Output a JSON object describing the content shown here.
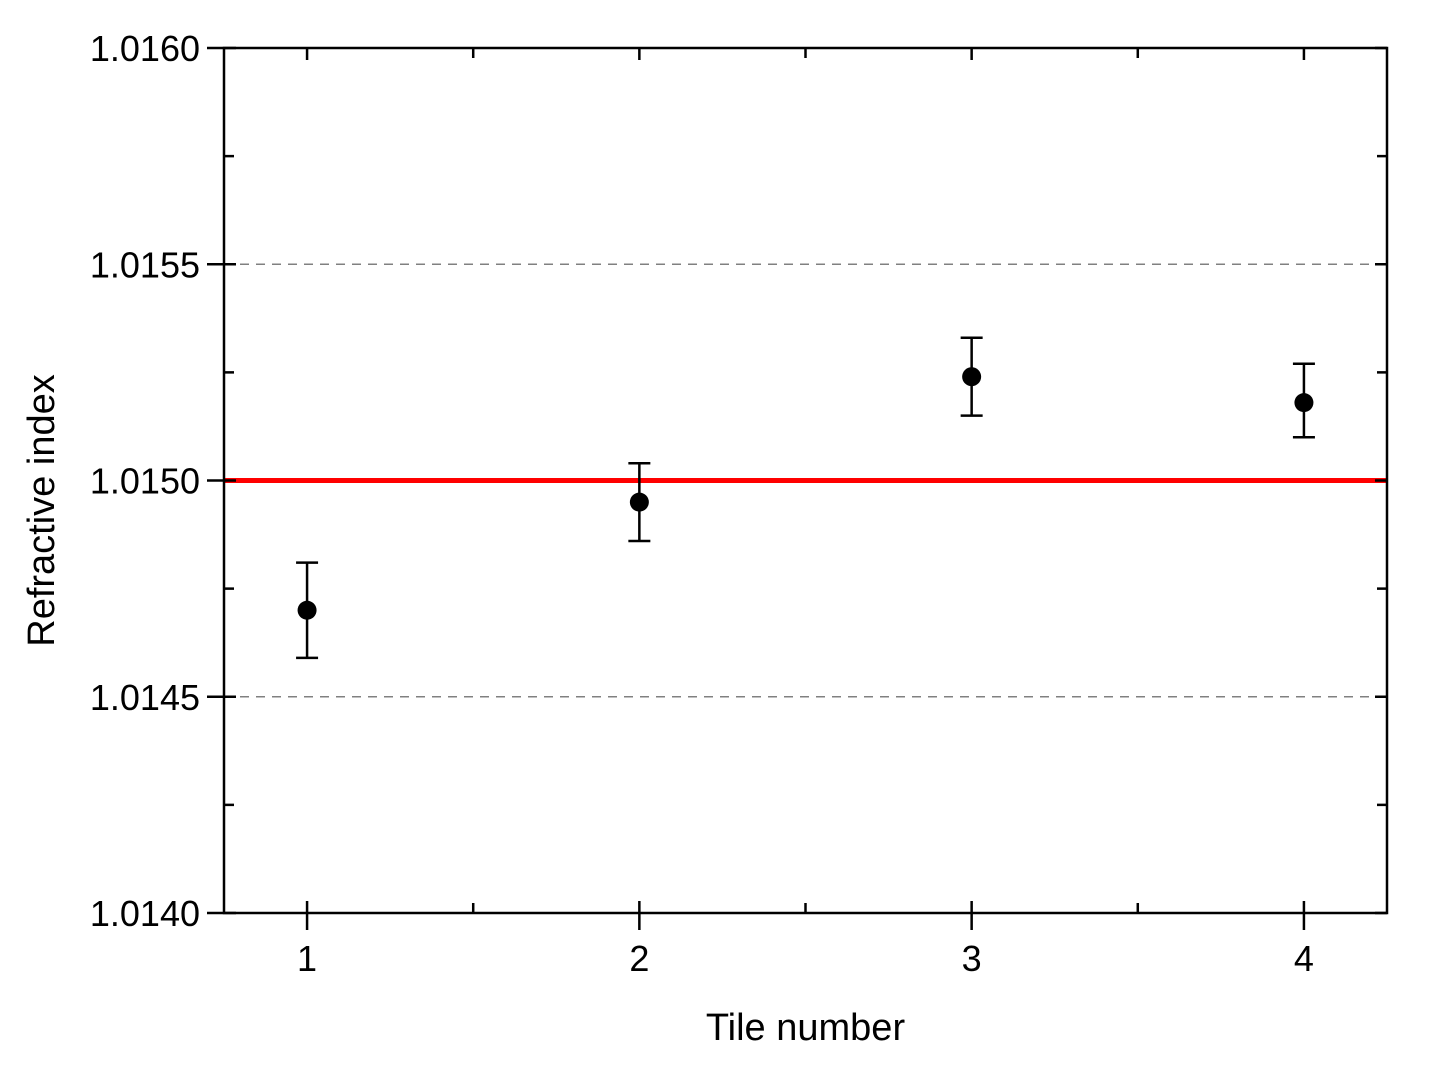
{
  "chart_data": {
    "type": "scatter",
    "title": "",
    "xlabel": "Tile number",
    "ylabel": "Refractive index",
    "xlim": [
      0.75,
      4.25
    ],
    "ylim": [
      1.014,
      1.016
    ],
    "x_ticks": [
      1,
      2,
      3,
      4
    ],
    "x_tick_labels": [
      "1",
      "2",
      "3",
      "4"
    ],
    "y_ticks": [
      1.014,
      1.0145,
      1.015,
      1.0155,
      1.016
    ],
    "y_tick_labels": [
      "1.0140",
      "1.0145",
      "1.0150",
      "1.0155",
      "1.0160"
    ],
    "series": [
      {
        "x": [
          1,
          2,
          3,
          4
        ],
        "y": [
          1.0147,
          1.01495,
          1.01524,
          1.01518
        ],
        "y_err_low": [
          1.01459,
          1.01486,
          1.01515,
          1.0151
        ],
        "y_err_high": [
          1.01481,
          1.01504,
          1.01533,
          1.01527
        ],
        "color": "#000000"
      }
    ],
    "reference_lines": [
      {
        "y": 1.015,
        "color": "#ff0000",
        "style": "solid"
      },
      {
        "y": 1.0155,
        "color": "#808080",
        "style": "dashed"
      },
      {
        "y": 1.0145,
        "color": "#808080",
        "style": "dashed"
      }
    ],
    "grid": false,
    "legend": "none"
  }
}
